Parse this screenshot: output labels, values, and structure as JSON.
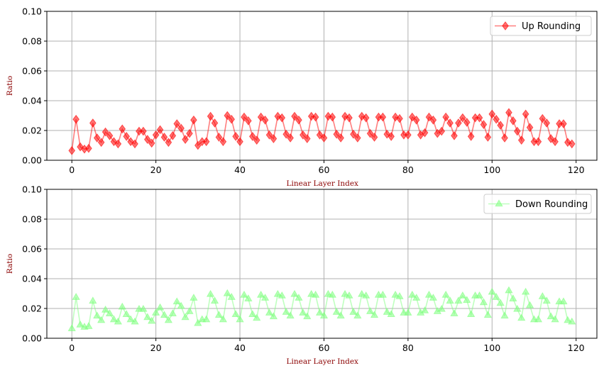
{
  "chart_data": [
    {
      "type": "line",
      "title": "",
      "xlabel": "Linear Layer Index",
      "ylabel": "Ratio",
      "xlim": [
        -5.95,
        124.95
      ],
      "ylim": [
        0,
        0.1
      ],
      "xticks": [
        0,
        20,
        40,
        60,
        80,
        100,
        120
      ],
      "yticks": [
        0.0,
        0.02,
        0.04,
        0.06,
        0.08,
        0.1
      ],
      "ytick_labels": [
        "0.00",
        "0.02",
        "0.04",
        "0.06",
        "0.08",
        "0.10"
      ],
      "grid": true,
      "legend_position": "top-right",
      "series": [
        {
          "name": "Up Rounding",
          "color": "#ff0000",
          "marker": "diamond",
          "x": [
            0,
            1,
            2,
            3,
            4,
            5,
            6,
            7,
            8,
            9,
            10,
            11,
            12,
            13,
            14,
            15,
            16,
            17,
            18,
            19,
            20,
            21,
            22,
            23,
            24,
            25,
            26,
            27,
            28,
            29,
            30,
            31,
            32,
            33,
            34,
            35,
            36,
            37,
            38,
            39,
            40,
            41,
            42,
            43,
            44,
            45,
            46,
            47,
            48,
            49,
            50,
            51,
            52,
            53,
            54,
            55,
            56,
            57,
            58,
            59,
            60,
            61,
            62,
            63,
            64,
            65,
            66,
            67,
            68,
            69,
            70,
            71,
            72,
            73,
            74,
            75,
            76,
            77,
            78,
            79,
            80,
            81,
            82,
            83,
            84,
            85,
            86,
            87,
            88,
            89,
            90,
            91,
            92,
            93,
            94,
            95,
            96,
            97,
            98,
            99,
            100,
            101,
            102,
            103,
            104,
            105,
            106,
            107,
            108,
            109,
            110,
            111,
            112,
            113,
            114,
            115,
            116,
            117,
            118,
            119
          ],
          "values": [
            0.0065,
            0.0275,
            0.009,
            0.0075,
            0.008,
            0.025,
            0.015,
            0.012,
            0.019,
            0.0165,
            0.0125,
            0.011,
            0.021,
            0.016,
            0.0125,
            0.011,
            0.0195,
            0.0195,
            0.014,
            0.0115,
            0.017,
            0.0205,
            0.0155,
            0.012,
            0.0165,
            0.0245,
            0.0215,
            0.014,
            0.018,
            0.027,
            0.01,
            0.0125,
            0.0125,
            0.0295,
            0.025,
            0.0155,
            0.0125,
            0.03,
            0.0275,
            0.016,
            0.0125,
            0.029,
            0.0265,
            0.016,
            0.0135,
            0.029,
            0.027,
            0.017,
            0.0145,
            0.0295,
            0.0285,
            0.0175,
            0.015,
            0.0295,
            0.027,
            0.017,
            0.0145,
            0.0295,
            0.029,
            0.017,
            0.015,
            0.0295,
            0.029,
            0.0175,
            0.015,
            0.0295,
            0.0285,
            0.0175,
            0.015,
            0.0295,
            0.0285,
            0.018,
            0.0155,
            0.029,
            0.029,
            0.0175,
            0.016,
            0.029,
            0.028,
            0.017,
            0.017,
            0.029,
            0.027,
            0.017,
            0.0185,
            0.029,
            0.027,
            0.018,
            0.0195,
            0.029,
            0.025,
            0.0165,
            0.025,
            0.0285,
            0.0255,
            0.016,
            0.0285,
            0.0285,
            0.024,
            0.0155,
            0.031,
            0.0275,
            0.0235,
            0.015,
            0.032,
            0.0265,
            0.0195,
            0.0135,
            0.031,
            0.022,
            0.0125,
            0.0125,
            0.028,
            0.025,
            0.0145,
            0.0125,
            0.0245,
            0.0245,
            0.012,
            0.011
          ]
        }
      ]
    },
    {
      "type": "line",
      "title": "",
      "xlabel": "Linear Layer Index",
      "ylabel": "Ratio",
      "xlim": [
        -5.95,
        124.95
      ],
      "ylim": [
        0,
        0.1
      ],
      "xticks": [
        0,
        20,
        40,
        60,
        80,
        100,
        120
      ],
      "yticks": [
        0.0,
        0.02,
        0.04,
        0.06,
        0.08,
        0.1
      ],
      "ytick_labels": [
        "0.00",
        "0.02",
        "0.04",
        "0.06",
        "0.08",
        "0.10"
      ],
      "grid": true,
      "legend_position": "top-right",
      "series": [
        {
          "name": "Down Rounding",
          "color": "#7fff7f",
          "marker": "triangle",
          "x": [
            0,
            1,
            2,
            3,
            4,
            5,
            6,
            7,
            8,
            9,
            10,
            11,
            12,
            13,
            14,
            15,
            16,
            17,
            18,
            19,
            20,
            21,
            22,
            23,
            24,
            25,
            26,
            27,
            28,
            29,
            30,
            31,
            32,
            33,
            34,
            35,
            36,
            37,
            38,
            39,
            40,
            41,
            42,
            43,
            44,
            45,
            46,
            47,
            48,
            49,
            50,
            51,
            52,
            53,
            54,
            55,
            56,
            57,
            58,
            59,
            60,
            61,
            62,
            63,
            64,
            65,
            66,
            67,
            68,
            69,
            70,
            71,
            72,
            73,
            74,
            75,
            76,
            77,
            78,
            79,
            80,
            81,
            82,
            83,
            84,
            85,
            86,
            87,
            88,
            89,
            90,
            91,
            92,
            93,
            94,
            95,
            96,
            97,
            98,
            99,
            100,
            101,
            102,
            103,
            104,
            105,
            106,
            107,
            108,
            109,
            110,
            111,
            112,
            113,
            114,
            115,
            116,
            117,
            118,
            119
          ],
          "values": [
            0.0065,
            0.0275,
            0.009,
            0.0075,
            0.008,
            0.025,
            0.015,
            0.012,
            0.019,
            0.0165,
            0.0125,
            0.011,
            0.021,
            0.016,
            0.0125,
            0.011,
            0.0195,
            0.0195,
            0.014,
            0.0115,
            0.017,
            0.0205,
            0.0155,
            0.012,
            0.0165,
            0.0245,
            0.0215,
            0.014,
            0.018,
            0.027,
            0.01,
            0.0125,
            0.0125,
            0.0295,
            0.025,
            0.0155,
            0.0125,
            0.03,
            0.0275,
            0.016,
            0.0125,
            0.029,
            0.0265,
            0.016,
            0.0135,
            0.029,
            0.027,
            0.017,
            0.0145,
            0.0295,
            0.0285,
            0.0175,
            0.015,
            0.0295,
            0.027,
            0.017,
            0.0145,
            0.0295,
            0.029,
            0.017,
            0.015,
            0.0295,
            0.029,
            0.0175,
            0.015,
            0.0295,
            0.0285,
            0.0175,
            0.015,
            0.0295,
            0.0285,
            0.018,
            0.0155,
            0.029,
            0.029,
            0.0175,
            0.016,
            0.029,
            0.028,
            0.017,
            0.017,
            0.029,
            0.027,
            0.017,
            0.0185,
            0.029,
            0.027,
            0.018,
            0.0195,
            0.029,
            0.025,
            0.0165,
            0.025,
            0.0285,
            0.0255,
            0.016,
            0.0285,
            0.0285,
            0.024,
            0.0155,
            0.031,
            0.0275,
            0.0235,
            0.015,
            0.032,
            0.0265,
            0.0195,
            0.0135,
            0.031,
            0.022,
            0.0125,
            0.0125,
            0.028,
            0.025,
            0.0145,
            0.0125,
            0.0245,
            0.0245,
            0.012,
            0.011
          ]
        }
      ]
    }
  ]
}
